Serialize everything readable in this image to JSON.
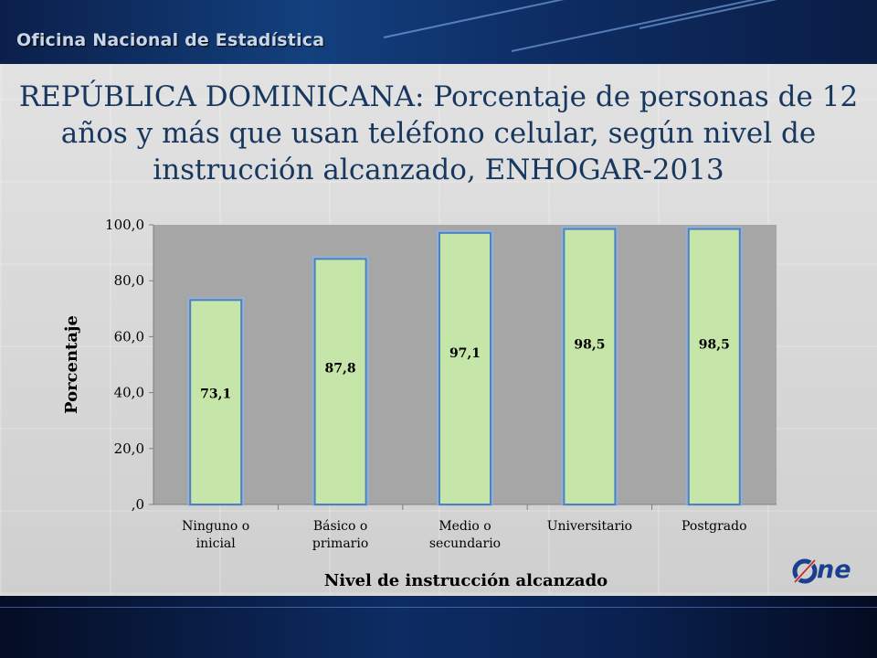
{
  "header": {
    "org_title": "Oficina Nacional de Estadística"
  },
  "slide": {
    "title": "REPÚBLICA DOMINICANA: Porcentaje de personas de 12 años y más que usan teléfono celular, según nivel de instrucción alcanzado, ENHOGAR-2013"
  },
  "logo": {
    "text": "ne"
  },
  "colors": {
    "bar_fill": "#c6e5a8",
    "bar_outline": "#4f81bd",
    "plot_bg": "#a6a6a6",
    "title": "#17375e"
  },
  "chart_data": {
    "type": "bar",
    "categories": [
      [
        "Ninguno o",
        "inicial"
      ],
      [
        "Básico o",
        "primario"
      ],
      [
        "Medio o",
        "secundario"
      ],
      [
        "Universitario"
      ],
      [
        "Postgrado"
      ]
    ],
    "values": [
      73.1,
      87.8,
      97.1,
      98.5,
      98.5
    ],
    "value_labels": [
      "73,1",
      "87,8",
      "97,1",
      "98,5",
      "98,5"
    ],
    "y_ticks": [
      ",0",
      "20,0",
      "40,0",
      "60,0",
      "80,0",
      "100,0"
    ],
    "ylim": [
      0,
      100
    ],
    "xlabel": "Nivel de instrucción alcanzado",
    "ylabel": "Porcentaje",
    "grid": false
  }
}
